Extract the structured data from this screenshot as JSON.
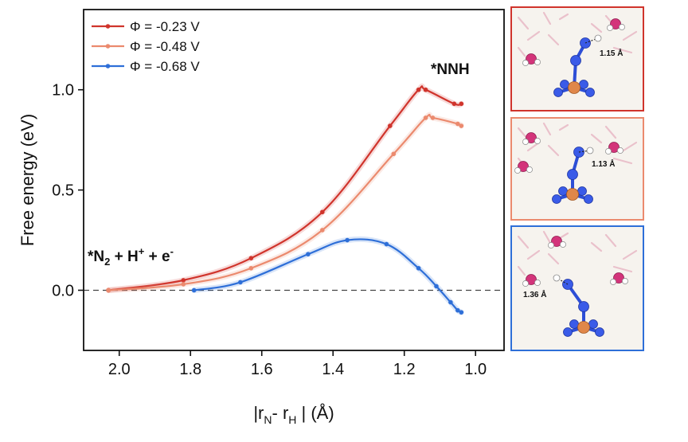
{
  "chart_data": {
    "type": "line",
    "xlabel": "|r",
    "xlabel_sub1": "N",
    "xlabel_mid": "- r",
    "xlabel_sub2": "H",
    "xlabel_end": " | (Å)",
    "ylabel": "Free energy (eV)",
    "xlim": [
      2.1,
      0.92
    ],
    "ylim": [
      -0.3,
      1.4
    ],
    "x_reversed": true,
    "x_ticks": [
      2.0,
      1.8,
      1.6,
      1.4,
      1.2,
      1.0
    ],
    "x_tick_labels": [
      "2.0",
      "1.8",
      "1.6",
      "1.4",
      "1.2",
      "1.0"
    ],
    "y_ticks": [
      0.0,
      0.5,
      1.0
    ],
    "y_tick_labels": [
      "0.0",
      "0.5",
      "1.0"
    ],
    "reference_line": {
      "y": 0.0,
      "style": "dashed"
    },
    "legend_position": "top-left",
    "annotations": {
      "initial_state": {
        "text": "*N",
        "sub": "2",
        "rest": " + H",
        "sup1": "+",
        "rest2": " + e",
        "sup2": "-"
      },
      "final_state": {
        "text": "*NNH"
      }
    },
    "series": [
      {
        "name": "Φ = -0.23 V",
        "color": "#d0342c",
        "x": [
          2.03,
          1.82,
          1.63,
          1.43,
          1.24,
          1.16,
          1.14,
          1.06,
          1.04
        ],
        "y": [
          0.0,
          0.05,
          0.16,
          0.39,
          0.82,
          1.0,
          1.0,
          0.93,
          0.93
        ]
      },
      {
        "name": "Φ = -0.48 V",
        "color": "#eb8a6e",
        "x": [
          2.03,
          1.82,
          1.63,
          1.43,
          1.23,
          1.14,
          1.12,
          1.05,
          1.04
        ],
        "y": [
          0.0,
          0.03,
          0.11,
          0.3,
          0.68,
          0.86,
          0.86,
          0.83,
          0.82
        ]
      },
      {
        "name": "Φ = -0.68 V",
        "color": "#2e6fd8",
        "x": [
          1.79,
          1.66,
          1.47,
          1.36,
          1.25,
          1.16,
          1.11,
          1.07,
          1.05,
          1.04
        ],
        "y": [
          0.0,
          0.04,
          0.18,
          0.25,
          0.23,
          0.11,
          0.02,
          -0.06,
          -0.1,
          -0.11
        ]
      }
    ]
  },
  "panels": [
    {
      "label": "1.15 Å",
      "border": "#d0342c"
    },
    {
      "label": "1.13 Å",
      "border": "#eb8a6e"
    },
    {
      "label": "1.36 Å",
      "border": "#2e6fd8"
    }
  ]
}
